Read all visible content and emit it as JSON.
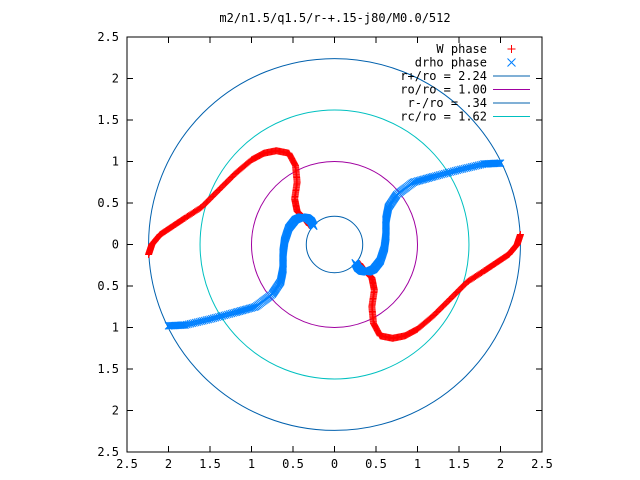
{
  "chart_data": {
    "type": "scatter",
    "title": "m2/n1.5/q1.5/r-+.15-j80/M0.0/512",
    "xlabel": "",
    "ylabel": "",
    "xlim": [
      -2.5,
      2.5
    ],
    "ylim": [
      -2.5,
      2.5
    ],
    "x_ticks": [
      "2.5",
      "2",
      "1.5",
      "1",
      "0.5",
      "0",
      "0.5",
      "1",
      "1.5",
      "2",
      "2.5"
    ],
    "y_ticks": [
      "2.5",
      "2",
      "1.5",
      "1",
      "0.5",
      "0",
      "0.5",
      "1",
      "1.5",
      "2",
      "2.5"
    ],
    "grid": false,
    "legend_position": "top-right",
    "series": [
      {
        "name": "W phase",
        "kind": "points",
        "marker": "+",
        "color": "#ff0000",
        "x": [
          -2.24,
          -2.2,
          -2.1,
          -1.95,
          -1.8,
          -1.6,
          -1.4,
          -1.2,
          -1.0,
          -0.85,
          -0.7,
          -0.55,
          -0.47,
          -0.45,
          -0.48,
          -0.45,
          -0.35,
          -0.3,
          2.24,
          2.2,
          2.1,
          1.95,
          1.8,
          1.6,
          1.4,
          1.2,
          1.0,
          0.85,
          0.7,
          0.55,
          0.47,
          0.45,
          0.48,
          0.45,
          0.35,
          0.3
        ],
        "y": [
          -0.12,
          -0.0,
          0.12,
          0.22,
          0.32,
          0.45,
          0.65,
          0.85,
          1.02,
          1.1,
          1.13,
          1.1,
          0.95,
          0.75,
          0.55,
          0.4,
          0.3,
          0.23,
          0.12,
          0.0,
          -0.12,
          -0.22,
          -0.32,
          -0.45,
          -0.65,
          -0.85,
          -1.02,
          -1.1,
          -1.13,
          -1.1,
          -0.95,
          -0.75,
          -0.55,
          -0.4,
          -0.3,
          -0.23
        ]
      },
      {
        "name": "drho phase",
        "kind": "points",
        "marker": "x",
        "color": "#0080ff",
        "x": [
          -2.0,
          -1.8,
          -1.5,
          -1.2,
          -0.95,
          -0.75,
          -0.65,
          -0.62,
          -0.62,
          -0.6,
          -0.55,
          -0.47,
          -0.4,
          -0.33,
          -0.28,
          -0.25,
          2.0,
          1.8,
          1.5,
          1.2,
          0.95,
          0.75,
          0.65,
          0.62,
          0.62,
          0.6,
          0.55,
          0.47,
          0.4,
          0.33,
          0.28,
          0.25
        ],
        "y": [
          -0.98,
          -0.97,
          -0.9,
          -0.82,
          -0.75,
          -0.6,
          -0.45,
          -0.3,
          -0.1,
          0.05,
          0.2,
          0.3,
          0.33,
          0.32,
          0.28,
          0.22,
          0.98,
          0.97,
          0.9,
          0.82,
          0.75,
          0.6,
          0.45,
          0.3,
          0.1,
          -0.05,
          -0.2,
          -0.3,
          -0.33,
          -0.32,
          -0.28,
          -0.22
        ]
      },
      {
        "name": "r+/ro = 2.24",
        "kind": "circle",
        "radius": 2.24,
        "color": "#0060ad"
      },
      {
        "name": "ro/ro = 1.00",
        "kind": "circle",
        "radius": 1.0,
        "color": "#a000a0"
      },
      {
        "name": "r-/ro = .34",
        "kind": "circle",
        "radius": 0.34,
        "color": "#0060ad"
      },
      {
        "name": "rc/ro = 1.62",
        "kind": "circle",
        "radius": 1.62,
        "color": "#00c0c0"
      }
    ]
  }
}
